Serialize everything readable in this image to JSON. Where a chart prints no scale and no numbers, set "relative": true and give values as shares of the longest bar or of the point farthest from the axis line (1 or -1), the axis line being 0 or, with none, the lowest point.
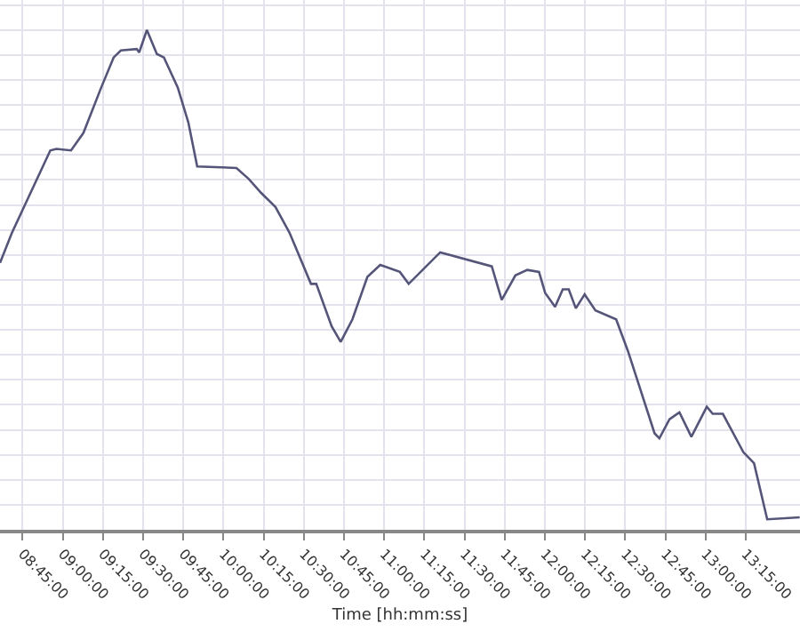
{
  "chart_data": {
    "type": "line",
    "relative": true,
    "xlabel": "Time [hh:mm:ss]",
    "grid": true,
    "marker": "none",
    "line_style": "solid",
    "xlim": [
      8.61,
      13.588
    ],
    "xticks": [
      {
        "value": 8.75,
        "label": "08:45:00"
      },
      {
        "value": 9.0,
        "label": "09:00:00"
      },
      {
        "value": 9.25,
        "label": "09:15:00"
      },
      {
        "value": 9.5,
        "label": "09:30:00"
      },
      {
        "value": 9.75,
        "label": "09:45:00"
      },
      {
        "value": 10.0,
        "label": "10:00:00"
      },
      {
        "value": 10.25,
        "label": "10:15:00"
      },
      {
        "value": 10.5,
        "label": "10:30:00"
      },
      {
        "value": 10.75,
        "label": "10:45:00"
      },
      {
        "value": 11.0,
        "label": "11:00:00"
      },
      {
        "value": 11.25,
        "label": "11:15:00"
      },
      {
        "value": 11.5,
        "label": "11:30:00"
      },
      {
        "value": 11.75,
        "label": "11:45:00"
      },
      {
        "value": 12.0,
        "label": "12:00:00"
      },
      {
        "value": 12.25,
        "label": "12:15:00"
      },
      {
        "value": 12.5,
        "label": "12:30:00"
      },
      {
        "value": 12.75,
        "label": "12:45:00"
      },
      {
        "value": 13.0,
        "label": "13:00:00"
      },
      {
        "value": 13.25,
        "label": "13:15:00"
      }
    ],
    "series": [
      {
        "color": "#55557a",
        "x": [
          8.61,
          8.684,
          8.923,
          8.96,
          9.052,
          9.129,
          9.24,
          9.317,
          9.362,
          9.461,
          9.476,
          9.524,
          9.586,
          9.63,
          9.716,
          9.782,
          9.837,
          10.081,
          10.158,
          10.235,
          10.324,
          10.412,
          10.545,
          10.578,
          10.674,
          10.73,
          10.803,
          10.896,
          10.976,
          11.098,
          11.153,
          11.349,
          11.67,
          11.732,
          11.817,
          11.891,
          11.964,
          12.002,
          12.064,
          12.112,
          12.149,
          12.193,
          12.248,
          12.315,
          12.444,
          12.517,
          12.683,
          12.713,
          12.776,
          12.838,
          12.912,
          13.008,
          13.045,
          13.108,
          13.236,
          13.302,
          13.384,
          13.586
        ],
        "values": [
          0.534,
          0.594,
          0.759,
          0.762,
          0.759,
          0.794,
          0.885,
          0.945,
          0.959,
          0.962,
          0.955,
          1,
          0.952,
          0.945,
          0.885,
          0.815,
          0.727,
          0.724,
          0.702,
          0.674,
          0.646,
          0.594,
          0.492,
          0.492,
          0.407,
          0.376,
          0.421,
          0.506,
          0.53,
          0.516,
          0.492,
          0.555,
          0.527,
          0.46,
          0.509,
          0.52,
          0.516,
          0.474,
          0.446,
          0.481,
          0.481,
          0.443,
          0.471,
          0.439,
          0.421,
          0.358,
          0.193,
          0.183,
          0.221,
          0.235,
          0.186,
          0.246,
          0.232,
          0.232,
          0.155,
          0.133,
          0.021,
          0.025
        ]
      }
    ]
  }
}
